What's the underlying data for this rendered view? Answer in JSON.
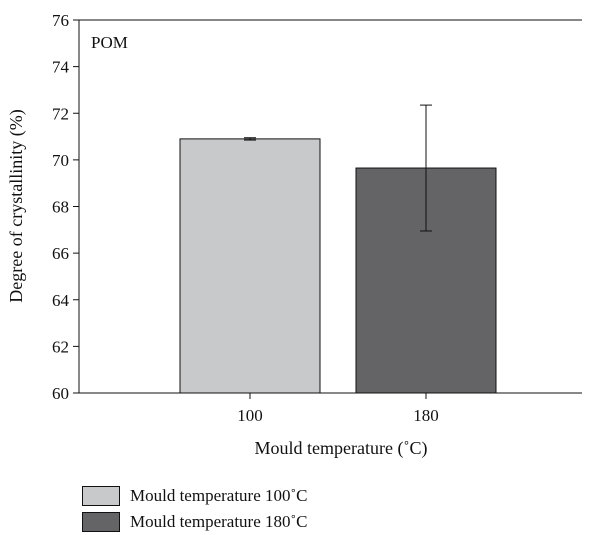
{
  "chart_data": {
    "type": "bar",
    "panel_label": "POM",
    "xlabel": "Mould temperature (˚C)",
    "ylabel": "Degree of crystallinity (%)",
    "ylim": [
      60,
      76
    ],
    "yticks": [
      "60",
      "62",
      "64",
      "66",
      "68",
      "70",
      "72",
      "74",
      "76"
    ],
    "categories": [
      "100",
      "180"
    ],
    "values": [
      70.9,
      69.65
    ],
    "errors": [
      0.05,
      2.7
    ],
    "colors": [
      "#c8c9cb",
      "#646466"
    ],
    "grid": false,
    "legend": {
      "placement": "bottom",
      "entries": [
        {
          "label": "Mould temperature 100˚C",
          "color": "#c8c9cb"
        },
        {
          "label": "Mould temperature 180˚C",
          "color": "#646466"
        }
      ]
    }
  }
}
